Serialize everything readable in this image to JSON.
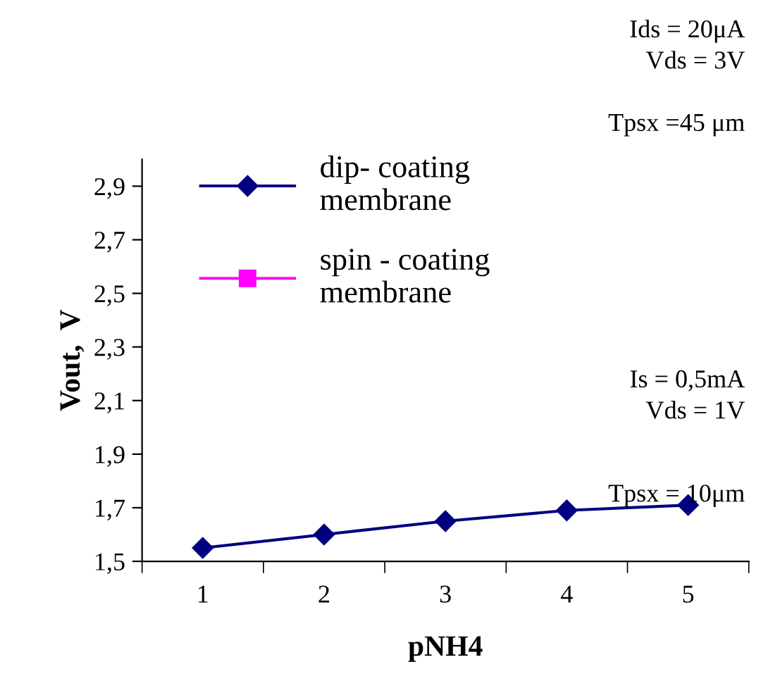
{
  "chart_data": {
    "type": "line",
    "xlabel": "pNH4",
    "ylabel": "Vout,  V",
    "categories": [
      "1",
      "2",
      "3",
      "4",
      "5"
    ],
    "series": [
      {
        "name": "dip- coating\nmembrane",
        "color": "#000080",
        "marker": "diamond",
        "values": [
          1.55,
          1.6,
          1.65,
          1.69,
          1.71
        ]
      },
      {
        "name": "spin - coating\nmembrane",
        "color": "#ff00ff",
        "marker": "square",
        "values": [
          null,
          null,
          null,
          null,
          null
        ]
      }
    ],
    "ylim": [
      1.5,
      3.0
    ],
    "yticks": [
      {
        "value": 1.5,
        "label": "1,5"
      },
      {
        "value": 1.7,
        "label": "1,7"
      },
      {
        "value": 1.9,
        "label": "1,9"
      },
      {
        "value": 2.1,
        "label": "2,1"
      },
      {
        "value": 2.3,
        "label": "2,3"
      },
      {
        "value": 2.5,
        "label": "2,5"
      },
      {
        "value": 2.7,
        "label": "2,7"
      },
      {
        "value": 2.9,
        "label": "2,9"
      }
    ],
    "legend": "top left",
    "grid": false,
    "line_style": "solid",
    "annotations": [
      "Ids = 20μA",
      "Vds = 3V",
      "Tpsx =45 μm",
      "Is = 0,5mA",
      "Vds = 1V",
      "Tpsx = 10μm"
    ]
  }
}
